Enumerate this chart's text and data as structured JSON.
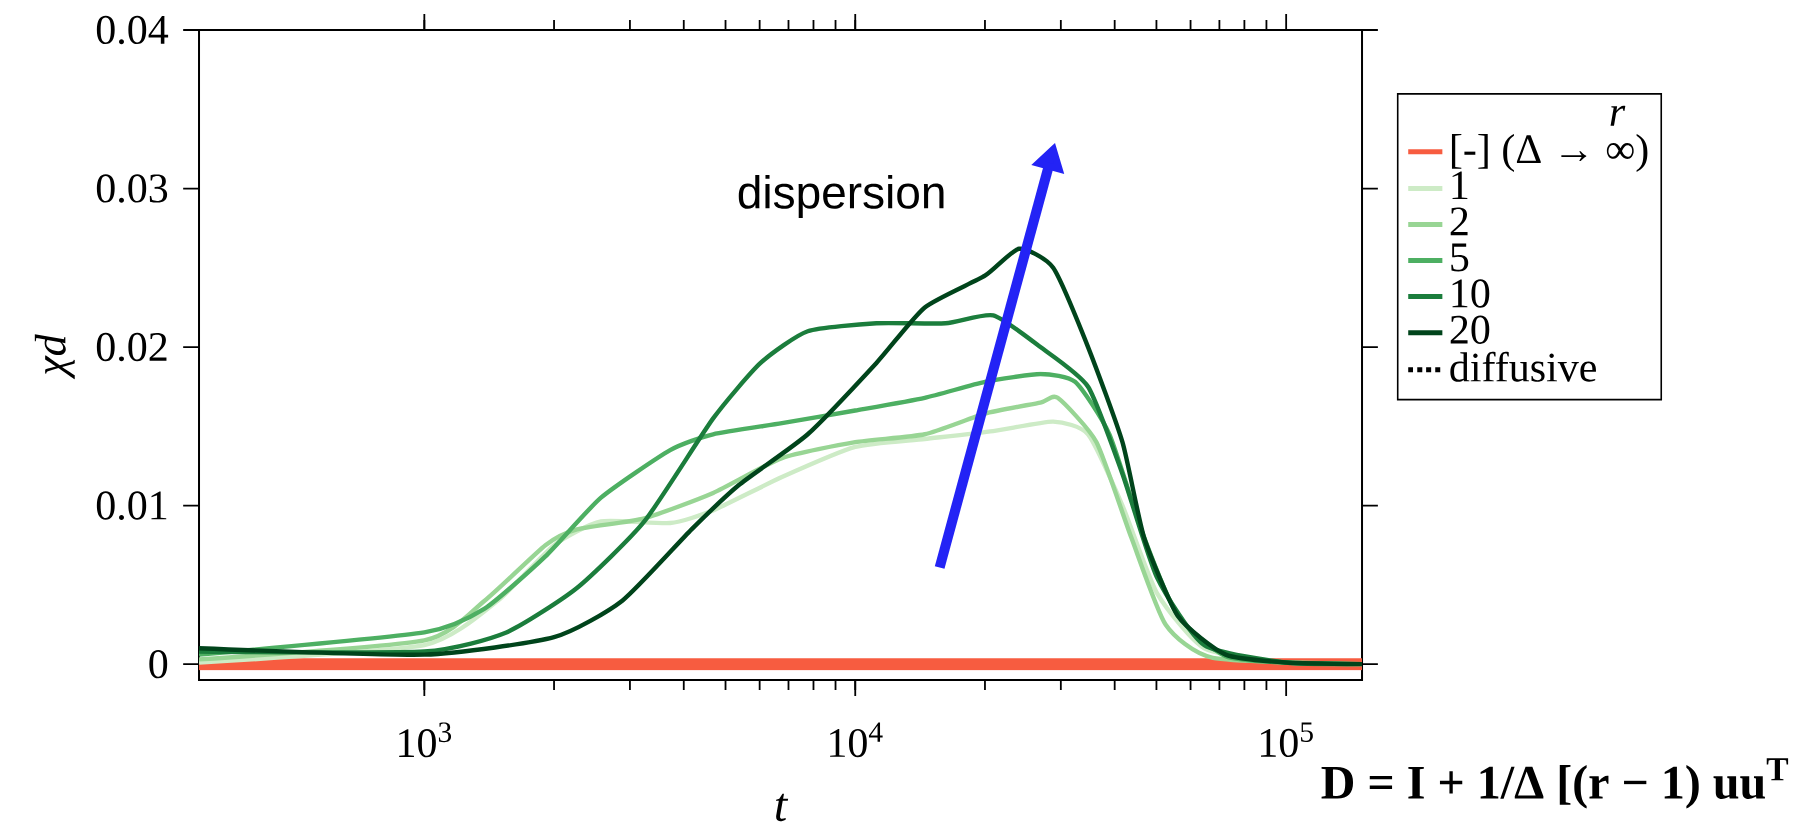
{
  "chart_data": {
    "type": "line",
    "xlabel": "t",
    "ylabel": "χd",
    "legend_title": "r",
    "legend": "right",
    "log": "x",
    "xlim": [
      300,
      150000
    ],
    "ylim": [
      -0.001,
      0.04
    ],
    "xticks": [
      {
        "value": 1000,
        "label": "10$^{3}$"
      },
      {
        "value": 10000,
        "label": "10$^{4}$"
      },
      {
        "value": 100000,
        "label": "10$^{5}$"
      }
    ],
    "yticks": [
      0,
      0.01,
      0.02,
      0.03,
      0.04
    ],
    "annotations": [
      "dispersion",
      "D = I + 1/Δ [(r − 1) uu$^{T}$"
    ],
    "series": [
      {
        "name": "[-] (Δ → ∞)",
        "color": "#f75c40",
        "x": [
          300,
          150000
        ],
        "values": [
          0,
          0
        ]
      },
      {
        "name": "1",
        "color": "#cdebc6",
        "x": [
          300,
          1000,
          1480,
          2000,
          2570,
          3720,
          4680,
          6760,
          10000,
          14500,
          20900,
          28800,
          34700,
          41700,
          50100,
          64600,
          100000,
          150000
        ],
        "values": [
          0.0001,
          0.0012,
          0.004,
          0.0075,
          0.009,
          0.0089,
          0.0097,
          0.0118,
          0.0137,
          0.0142,
          0.0147,
          0.0153,
          0.0145,
          0.01,
          0.0045,
          0.001,
          0.0001,
          0
        ]
      },
      {
        "name": "2",
        "color": "#98d594",
        "x": [
          300,
          1000,
          1380,
          1910,
          2260,
          3240,
          4680,
          6760,
          10000,
          14500,
          20000,
          26900,
          29500,
          36300,
          43700,
          52500,
          67600,
          150000
        ],
        "values": [
          0.0003,
          0.0015,
          0.004,
          0.0075,
          0.0085,
          0.0092,
          0.0108,
          0.013,
          0.014,
          0.0145,
          0.0158,
          0.0165,
          0.0168,
          0.014,
          0.008,
          0.0025,
          0.0004,
          0
        ]
      },
      {
        "name": "5",
        "color": "#4daf62",
        "x": [
          300,
          1000,
          1380,
          1910,
          2570,
          3720,
          4680,
          6760,
          10000,
          14500,
          20000,
          26900,
          32400,
          38900,
          46800,
          56200,
          72400,
          100000,
          150000
        ],
        "values": [
          0.0006,
          0.002,
          0.0035,
          0.0068,
          0.0105,
          0.0135,
          0.0145,
          0.0152,
          0.016,
          0.0168,
          0.0178,
          0.0183,
          0.0178,
          0.0145,
          0.008,
          0.003,
          0.0005,
          0.0001,
          0
        ]
      },
      {
        "name": "10",
        "color": "#1b7d3c",
        "x": [
          300,
          1000,
          1550,
          2260,
          3240,
          4680,
          6030,
          7760,
          11200,
          16200,
          20900,
          26900,
          34700,
          41700,
          50100,
          64600,
          100000,
          150000
        ],
        "values": [
          0.0008,
          0.0008,
          0.002,
          0.0048,
          0.009,
          0.0155,
          0.019,
          0.021,
          0.0215,
          0.0215,
          0.022,
          0.02,
          0.0175,
          0.012,
          0.0055,
          0.0012,
          0.0001,
          0
        ]
      },
      {
        "name": "20",
        "color": "#00441b",
        "x": [
          300,
          1000,
          2000,
          2880,
          4170,
          5370,
          7760,
          11200,
          14500,
          20000,
          24000,
          28800,
          34700,
          41700,
          46800,
          56200,
          72400,
          100000,
          150000
        ],
        "values": [
          0.001,
          0.0006,
          0.0017,
          0.004,
          0.0085,
          0.0113,
          0.0145,
          0.019,
          0.0225,
          0.0245,
          0.0262,
          0.025,
          0.02,
          0.014,
          0.008,
          0.003,
          0.0006,
          0.0001,
          0
        ]
      },
      {
        "name": "diffusive",
        "color": "#000000",
        "line_style": "dotted",
        "values": [
          null
        ]
      }
    ]
  }
}
